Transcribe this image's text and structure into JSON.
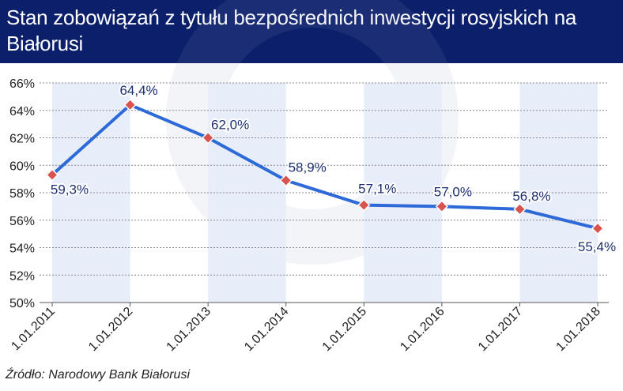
{
  "header": {
    "title": "Stan zobowiązań z tytułu bezpośrednich inwestycji rosyjskich na Białorusi"
  },
  "source": "Źródło: Narodowy Bank Białorusi",
  "colors": {
    "header_bg": "#0b1f6b",
    "line": "#2d6ad8",
    "marker": "#d9534f",
    "band": "#e7eefa"
  },
  "chart_data": {
    "type": "line",
    "title": "Stan zobowiązań z tytułu bezpośrednich inwestycji rosyjskich na Białorusi",
    "xlabel": "",
    "ylabel": "",
    "categories": [
      "1.01.2011",
      "1.01.2012",
      "1.01.2013",
      "1.01.2014",
      "1.01.2015",
      "1.01.2016",
      "1.01.2017",
      "1.01.2018"
    ],
    "values": [
      59.3,
      64.4,
      62.0,
      58.9,
      57.1,
      57.0,
      56.8,
      55.4
    ],
    "data_labels": [
      "59,3%",
      "64,4%",
      "62,0%",
      "58,9%",
      "57,1%",
      "57,0%",
      "56,8%",
      "55,4%"
    ],
    "ylim": [
      50,
      66
    ],
    "yticks": [
      50,
      52,
      54,
      56,
      58,
      60,
      62,
      64,
      66
    ],
    "ytick_labels": [
      "50%",
      "52%",
      "54%",
      "56%",
      "58%",
      "60%",
      "62%",
      "64%",
      "66%"
    ],
    "grid": true,
    "legend": "none"
  }
}
